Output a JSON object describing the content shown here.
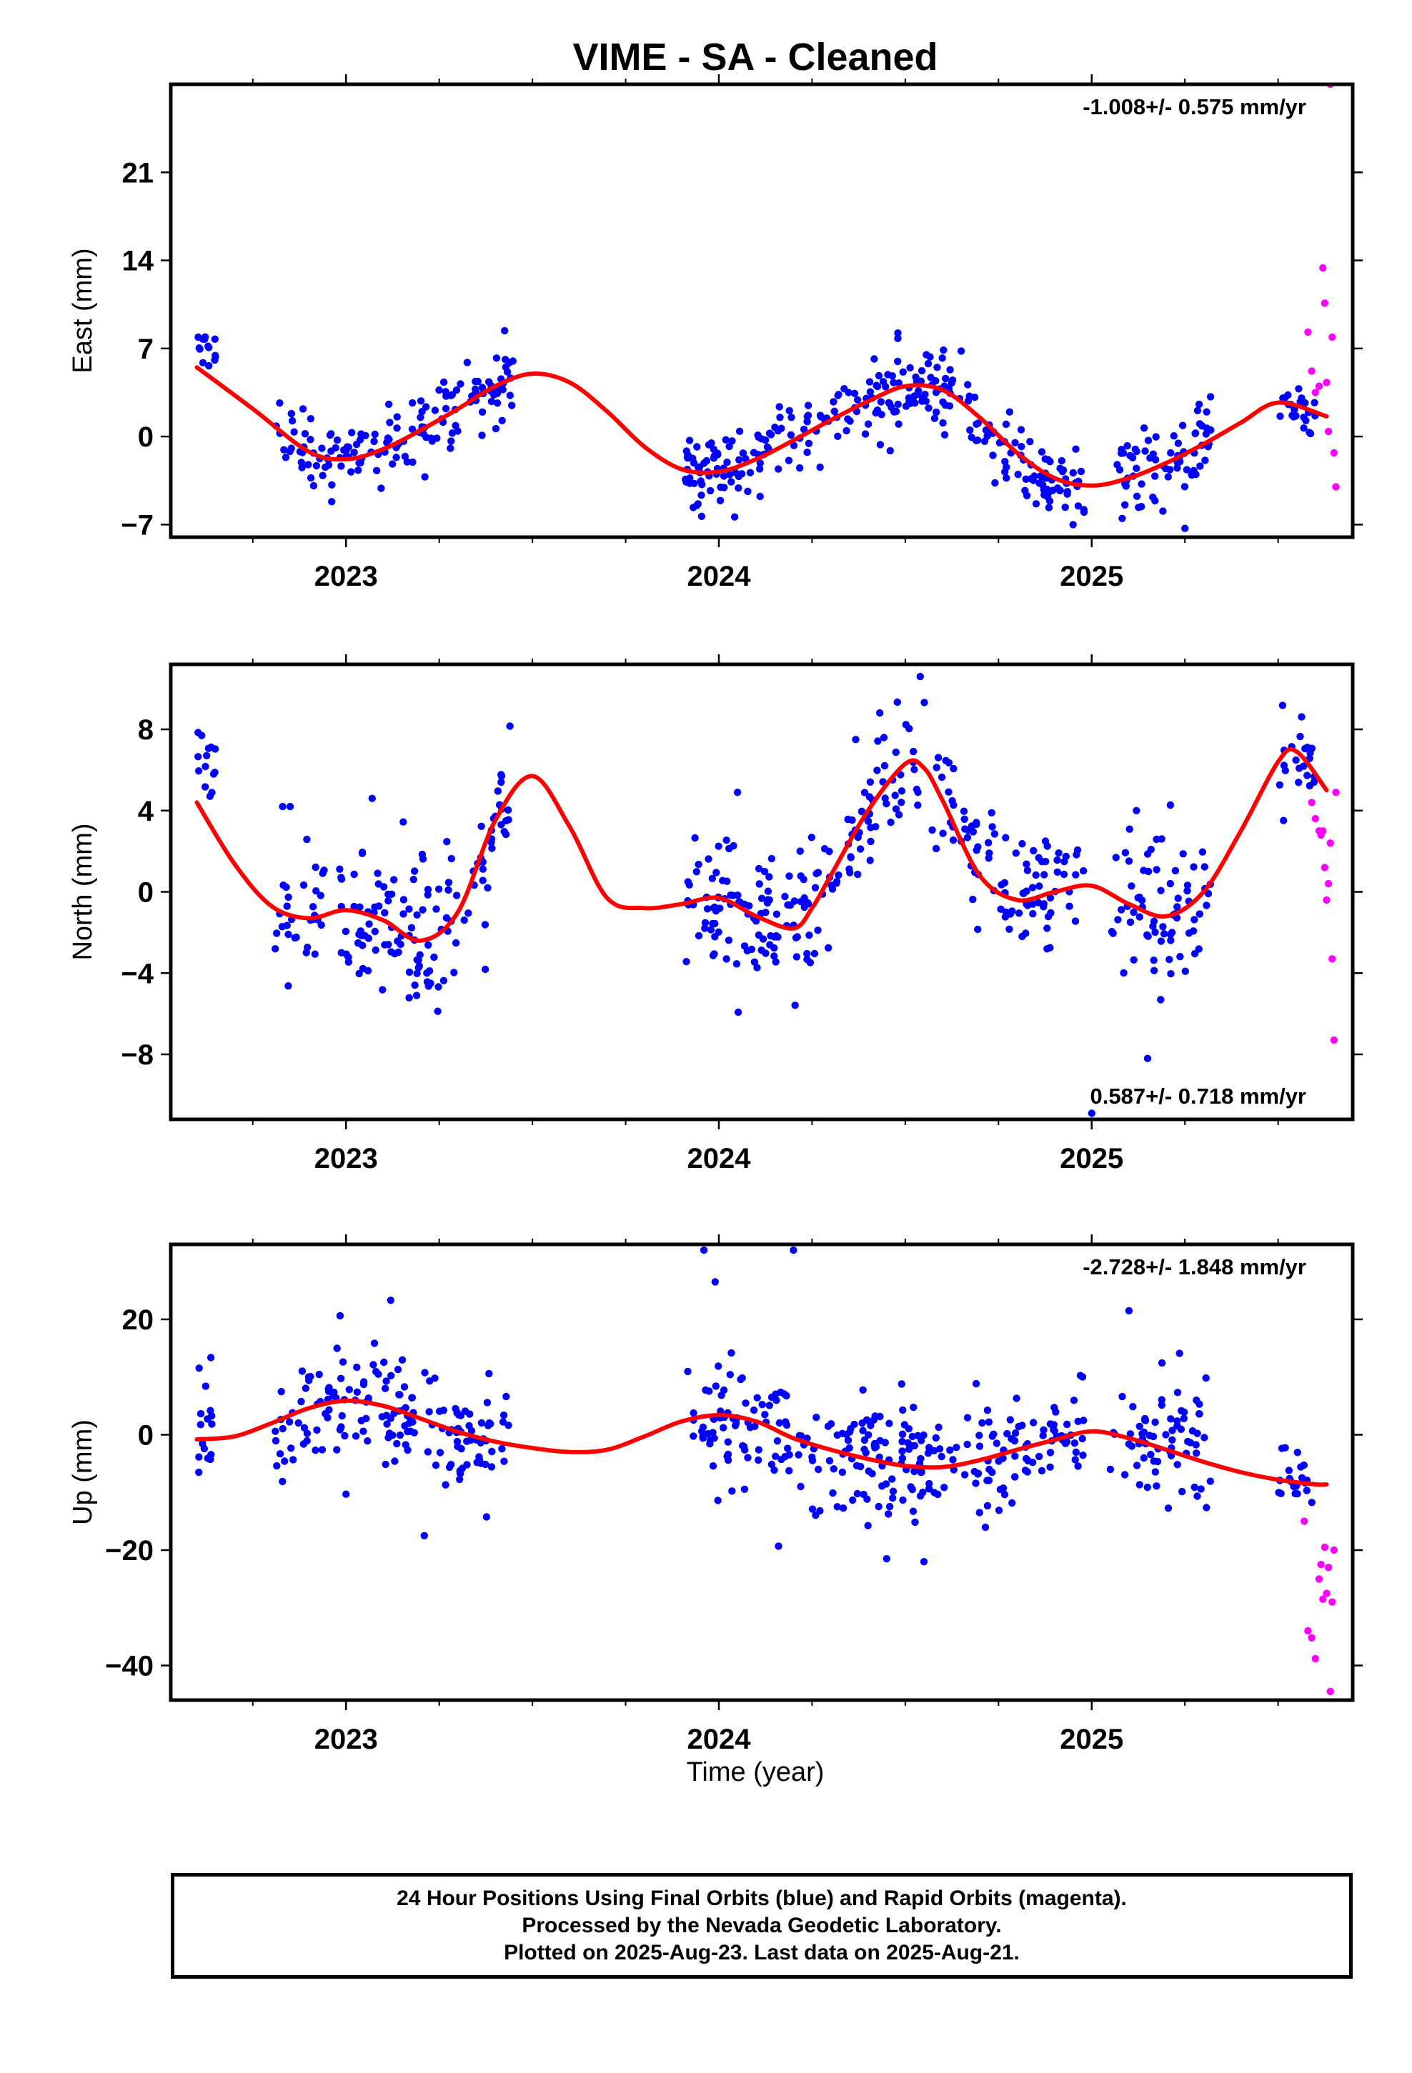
{
  "title": "VIME  - SA - Cleaned",
  "x_label": "Time (year)",
  "footer": {
    "line1": "24 Hour Positions Using Final Orbits (blue) and Rapid Orbits (magenta).",
    "line2": "Processed by the Nevada Geodetic Laboratory.",
    "line3": "Plotted on 2025-Aug-23. Last data on 2025-Aug-21."
  },
  "colors": {
    "final": "#0000ff",
    "rapid": "#ff00ff",
    "model": "#ff0000",
    "axis": "#000000"
  },
  "chart_data": [
    {
      "type": "scatter",
      "name": "east",
      "ylabel": "East (mm)",
      "rate": "-1.008+/- 0.575 mm/yr",
      "rate_position": "top-right",
      "xlim": [
        2022.53,
        2025.7
      ],
      "ylim": [
        -8,
        28
      ],
      "xticks": [
        2023,
        2024,
        2025
      ],
      "yticks": [
        -7,
        0,
        7,
        14,
        21
      ],
      "grid": false,
      "model": {
        "t": [
          2022.6,
          2022.75,
          2022.9,
          2023.0,
          2023.1,
          2023.2,
          2023.3,
          2023.4,
          2023.5,
          2023.6,
          2023.7,
          2023.8,
          2023.9,
          2024.0,
          2024.1,
          2024.2,
          2024.3,
          2024.4,
          2024.5,
          2024.6,
          2024.7,
          2024.8,
          2024.9,
          2025.0,
          2025.1,
          2025.2,
          2025.3,
          2025.4,
          2025.5,
          2025.63
        ],
        "y": [
          5.5,
          2.2,
          -1.2,
          -1.8,
          -1.0,
          0.5,
          2.2,
          4.0,
          5.0,
          4.3,
          2.0,
          -0.8,
          -2.6,
          -2.8,
          -1.8,
          -0.3,
          1.3,
          2.8,
          4.0,
          3.7,
          1.5,
          -1.3,
          -3.3,
          -3.9,
          -3.3,
          -2.1,
          -0.6,
          1.1,
          2.7,
          1.6
        ]
      },
      "final_segments": [
        {
          "t0": 2022.6,
          "t1": 2022.65,
          "n": 14,
          "noise": 0.7,
          "offset": 2.0
        },
        {
          "t0": 2022.81,
          "t1": 2023.45,
          "n": 150,
          "noise": 1.5
        },
        {
          "t0": 2023.91,
          "t1": 2024.7,
          "n": 210,
          "noise": 1.6
        },
        {
          "t0": 2024.7,
          "t1": 2024.98,
          "n": 75,
          "noise": 1.5,
          "offset": -0.6
        },
        {
          "t0": 2025.05,
          "t1": 2025.32,
          "n": 70,
          "noise": 1.6
        },
        {
          "t0": 2025.5,
          "t1": 2025.6,
          "n": 22,
          "noise": 0.9
        }
      ],
      "final_outliers": [
        [
          2024.48,
          7.8
        ],
        [
          2024.65,
          6.8
        ],
        [
          2025.25,
          -7.3
        ],
        [
          2024.95,
          -7.0
        ]
      ],
      "rapid": [
        [
          2025.58,
          8.3
        ],
        [
          2025.59,
          5.2
        ],
        [
          2025.6,
          3.5
        ],
        [
          2025.61,
          4.0
        ],
        [
          2025.62,
          13.4
        ],
        [
          2025.625,
          10.6
        ],
        [
          2025.63,
          4.3
        ],
        [
          2025.635,
          0.4
        ],
        [
          2025.64,
          28.0
        ],
        [
          2025.645,
          7.9
        ],
        [
          2025.65,
          -1.3
        ],
        [
          2025.655,
          -4.0
        ]
      ]
    },
    {
      "type": "scatter",
      "name": "north",
      "ylabel": "North (mm)",
      "rate": "0.587+/- 0.718 mm/yr",
      "rate_position": "bottom-right",
      "xlim": [
        2022.53,
        2025.7
      ],
      "ylim": [
        -11.2,
        11.2
      ],
      "xticks": [
        2023,
        2024,
        2025
      ],
      "yticks": [
        -8,
        -4,
        0,
        4,
        8
      ],
      "grid": false,
      "model": {
        "t": [
          2022.6,
          2022.7,
          2022.8,
          2022.9,
          2023.0,
          2023.1,
          2023.2,
          2023.3,
          2023.4,
          2023.5,
          2023.6,
          2023.7,
          2023.8,
          2023.9,
          2024.0,
          2024.1,
          2024.2,
          2024.25,
          2024.3,
          2024.4,
          2024.5,
          2024.55,
          2024.6,
          2024.7,
          2024.8,
          2024.9,
          2025.0,
          2025.1,
          2025.2,
          2025.3,
          2025.4,
          2025.5,
          2025.55,
          2025.63
        ],
        "y": [
          4.4,
          1.4,
          -0.7,
          -1.3,
          -0.9,
          -1.4,
          -2.4,
          -1.0,
          3.5,
          5.7,
          3.2,
          -0.3,
          -0.8,
          -0.6,
          -0.3,
          -1.2,
          -1.8,
          -0.8,
          0.8,
          4.0,
          6.3,
          6.1,
          4.5,
          0.8,
          -0.4,
          0.0,
          0.3,
          -0.6,
          -1.2,
          0.0,
          3.0,
          6.4,
          6.9,
          5.0
        ]
      },
      "final_segments": [
        {
          "t0": 2022.6,
          "t1": 2022.65,
          "n": 14,
          "noise": 0.8,
          "offset": 2.8
        },
        {
          "t0": 2022.81,
          "t1": 2023.44,
          "n": 160,
          "noise": 1.7
        },
        {
          "t0": 2023.91,
          "t1": 2024.72,
          "n": 210,
          "noise": 1.7
        },
        {
          "t0": 2024.72,
          "t1": 2024.98,
          "n": 65,
          "noise": 1.6
        },
        {
          "t0": 2025.05,
          "t1": 2025.32,
          "n": 70,
          "noise": 1.7
        },
        {
          "t0": 2025.5,
          "t1": 2025.6,
          "n": 22,
          "noise": 1.2
        }
      ],
      "final_outliers": [
        [
          2022.83,
          4.2
        ],
        [
          2022.85,
          4.2
        ],
        [
          2023.07,
          4.6
        ],
        [
          2024.05,
          4.9
        ],
        [
          2024.54,
          10.6
        ],
        [
          2025.12,
          4.0
        ],
        [
          2025.15,
          -8.2
        ],
        [
          2025.0,
          -10.9
        ]
      ],
      "rapid": [
        [
          2025.59,
          4.4
        ],
        [
          2025.6,
          3.6
        ],
        [
          2025.61,
          3.0
        ],
        [
          2025.615,
          2.8
        ],
        [
          2025.62,
          3.0
        ],
        [
          2025.625,
          1.2
        ],
        [
          2025.63,
          -0.4
        ],
        [
          2025.635,
          0.4
        ],
        [
          2025.64,
          2.4
        ],
        [
          2025.645,
          -3.3
        ],
        [
          2025.65,
          -7.3
        ],
        [
          2025.655,
          4.9
        ]
      ]
    },
    {
      "type": "scatter",
      "name": "up",
      "ylabel": "Up (mm)",
      "rate": "-2.728+/- 1.848 mm/yr",
      "rate_position": "top-right",
      "xlim": [
        2022.53,
        2025.7
      ],
      "ylim": [
        -46,
        33
      ],
      "xticks": [
        2023,
        2024,
        2025
      ],
      "yticks": [
        -40,
        -20,
        0,
        20
      ],
      "grid": false,
      "model": {
        "t": [
          2022.6,
          2022.7,
          2022.8,
          2022.9,
          2023.0,
          2023.1,
          2023.2,
          2023.3,
          2023.4,
          2023.5,
          2023.6,
          2023.7,
          2023.8,
          2023.9,
          2024.0,
          2024.1,
          2024.2,
          2024.3,
          2024.4,
          2024.5,
          2024.6,
          2024.7,
          2024.8,
          2024.9,
          2025.0,
          2025.1,
          2025.2,
          2025.3,
          2025.4,
          2025.5,
          2025.6,
          2025.63
        ],
        "y": [
          -0.8,
          -0.3,
          2.0,
          4.6,
          5.9,
          5.0,
          2.8,
          0.5,
          -1.2,
          -2.3,
          -3.0,
          -2.6,
          -0.3,
          2.3,
          3.4,
          2.3,
          -0.6,
          -2.6,
          -4.2,
          -5.4,
          -5.6,
          -4.4,
          -2.6,
          -0.9,
          0.6,
          -0.6,
          -2.6,
          -4.7,
          -6.5,
          -7.8,
          -8.6,
          -8.6
        ]
      },
      "final_segments": [
        {
          "t0": 2022.6,
          "t1": 2022.64,
          "n": 16,
          "noise": 6.0
        },
        {
          "t0": 2022.81,
          "t1": 2023.44,
          "n": 170,
          "noise": 5.0
        },
        {
          "t0": 2023.91,
          "t1": 2024.72,
          "n": 210,
          "noise": 5.0
        },
        {
          "t0": 2024.72,
          "t1": 2024.98,
          "n": 70,
          "noise": 4.6
        },
        {
          "t0": 2025.05,
          "t1": 2025.32,
          "n": 70,
          "noise": 5.5
        },
        {
          "t0": 2025.5,
          "t1": 2025.6,
          "n": 22,
          "noise": 3.0
        }
      ],
      "final_outliers": [
        [
          2023.0,
          -10.3
        ],
        [
          2023.12,
          23.3
        ],
        [
          2023.21,
          -17.5
        ],
        [
          2023.96,
          32.0
        ],
        [
          2023.99,
          26.5
        ],
        [
          2024.16,
          -19.3
        ],
        [
          2024.2,
          32.0
        ],
        [
          2024.45,
          -21.5
        ],
        [
          2024.55,
          -22.0
        ],
        [
          2025.1,
          21.5
        ]
      ],
      "rapid": [
        [
          2025.57,
          -15.0
        ],
        [
          2025.58,
          -34.0
        ],
        [
          2025.59,
          -35.2
        ],
        [
          2025.6,
          -38.8
        ],
        [
          2025.61,
          -25.0
        ],
        [
          2025.615,
          -22.5
        ],
        [
          2025.62,
          -28.5
        ],
        [
          2025.625,
          -19.5
        ],
        [
          2025.63,
          -27.5
        ],
        [
          2025.635,
          -23.0
        ],
        [
          2025.64,
          -44.5
        ],
        [
          2025.645,
          -29.0
        ],
        [
          2025.65,
          -20.0
        ]
      ]
    }
  ]
}
